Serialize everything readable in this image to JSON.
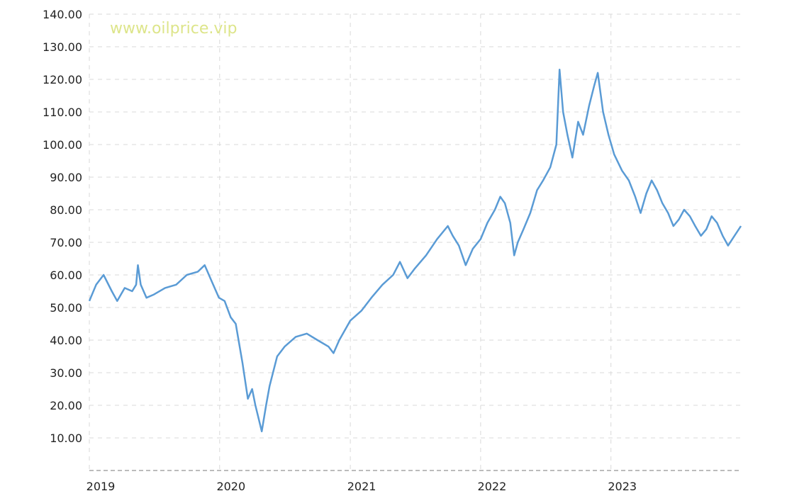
{
  "watermark": "www.oilprice.vip",
  "colors": {
    "line": "#5a9bd5",
    "grid": "#d9d9d9",
    "axis": "#a6a6a6",
    "watermark": "#dde58a",
    "tick_text": "#222222"
  },
  "chart_data": {
    "type": "line",
    "title": "",
    "xlabel": "",
    "ylabel": "",
    "grid": true,
    "ylim": [
      0,
      140
    ],
    "xlim": [
      "2019-01-01",
      "2023-12-31"
    ],
    "yticks": [
      "10.00",
      "20.00",
      "30.00",
      "40.00",
      "50.00",
      "60.00",
      "70.00",
      "80.00",
      "90.00",
      "100.00",
      "110.00",
      "120.00",
      "130.00",
      "140.00"
    ],
    "xticks": [
      {
        "label": "2019",
        "date": "2019-01-01"
      },
      {
        "label": "2020",
        "date": "2020-01-01"
      },
      {
        "label": "2021",
        "date": "2021-01-01"
      },
      {
        "label": "2022",
        "date": "2022-01-01"
      },
      {
        "label": "2023",
        "date": "2023-01-01"
      }
    ],
    "series": [
      {
        "points": [
          [
            "2019-01-01",
            52
          ],
          [
            "2019-01-20",
            57
          ],
          [
            "2019-02-10",
            60
          ],
          [
            "2019-03-05",
            55
          ],
          [
            "2019-03-20",
            52
          ],
          [
            "2019-04-10",
            56
          ],
          [
            "2019-05-01",
            55
          ],
          [
            "2019-05-12",
            57
          ],
          [
            "2019-05-17",
            63
          ],
          [
            "2019-05-25",
            57
          ],
          [
            "2019-06-10",
            53
          ],
          [
            "2019-07-01",
            54
          ],
          [
            "2019-08-01",
            56
          ],
          [
            "2019-09-01",
            57
          ],
          [
            "2019-10-01",
            60
          ],
          [
            "2019-11-01",
            61
          ],
          [
            "2019-11-20",
            63
          ],
          [
            "2019-12-10",
            58
          ],
          [
            "2019-12-30",
            53
          ],
          [
            "2020-01-15",
            52
          ],
          [
            "2020-02-01",
            47
          ],
          [
            "2020-02-15",
            45
          ],
          [
            "2020-03-05",
            33
          ],
          [
            "2020-03-20",
            22
          ],
          [
            "2020-04-01",
            25
          ],
          [
            "2020-04-10",
            20
          ],
          [
            "2020-04-28",
            12
          ],
          [
            "2020-05-10",
            20
          ],
          [
            "2020-05-20",
            26
          ],
          [
            "2020-06-10",
            35
          ],
          [
            "2020-07-01",
            38
          ],
          [
            "2020-08-01",
            41
          ],
          [
            "2020-09-01",
            42
          ],
          [
            "2020-10-01",
            40
          ],
          [
            "2020-11-01",
            38
          ],
          [
            "2020-11-15",
            36
          ],
          [
            "2020-12-01",
            40
          ],
          [
            "2021-01-01",
            46
          ],
          [
            "2021-02-01",
            49
          ],
          [
            "2021-03-01",
            53
          ],
          [
            "2021-04-01",
            57
          ],
          [
            "2021-05-01",
            60
          ],
          [
            "2021-05-20",
            64
          ],
          [
            "2021-06-10",
            59
          ],
          [
            "2021-07-01",
            62
          ],
          [
            "2021-08-01",
            66
          ],
          [
            "2021-09-01",
            71
          ],
          [
            "2021-10-01",
            75
          ],
          [
            "2021-10-15",
            72
          ],
          [
            "2021-11-01",
            69
          ],
          [
            "2021-11-20",
            63
          ],
          [
            "2021-12-10",
            68
          ],
          [
            "2022-01-01",
            71
          ],
          [
            "2022-01-20",
            76
          ],
          [
            "2022-02-10",
            80
          ],
          [
            "2022-02-25",
            84
          ],
          [
            "2022-03-10",
            82
          ],
          [
            "2022-03-25",
            76
          ],
          [
            "2022-04-05",
            66
          ],
          [
            "2022-04-15",
            70
          ],
          [
            "2022-05-01",
            74
          ],
          [
            "2022-05-20",
            79
          ],
          [
            "2022-06-08",
            86
          ],
          [
            "2022-06-25",
            89
          ],
          [
            "2022-07-15",
            93
          ],
          [
            "2022-08-01",
            100
          ],
          [
            "2022-08-10",
            123
          ],
          [
            "2022-08-20",
            110
          ],
          [
            "2022-09-01",
            103
          ],
          [
            "2022-09-15",
            96
          ],
          [
            "2022-10-01",
            107
          ],
          [
            "2022-10-15",
            103
          ],
          [
            "2022-11-01",
            112
          ],
          [
            "2022-11-15",
            118
          ],
          [
            "2022-11-25",
            122
          ],
          [
            "2022-12-10",
            110
          ],
          [
            "2022-12-25",
            103
          ],
          [
            "2023-01-10",
            97
          ],
          [
            "2023-02-01",
            92
          ],
          [
            "2023-02-20",
            89
          ],
          [
            "2023-03-10",
            84
          ],
          [
            "2023-03-25",
            79
          ],
          [
            "2023-04-10",
            85
          ],
          [
            "2023-04-25",
            89
          ],
          [
            "2023-05-10",
            86
          ],
          [
            "2023-05-25",
            82
          ],
          [
            "2023-06-10",
            79
          ],
          [
            "2023-06-25",
            75
          ],
          [
            "2023-07-10",
            77
          ],
          [
            "2023-07-25",
            80
          ],
          [
            "2023-08-10",
            78
          ],
          [
            "2023-08-25",
            75
          ],
          [
            "2023-09-10",
            72
          ],
          [
            "2023-09-25",
            74
          ],
          [
            "2023-10-10",
            78
          ],
          [
            "2023-10-25",
            76
          ],
          [
            "2023-11-10",
            72
          ],
          [
            "2023-11-25",
            69
          ],
          [
            "2023-12-31",
            75
          ]
        ]
      }
    ]
  }
}
